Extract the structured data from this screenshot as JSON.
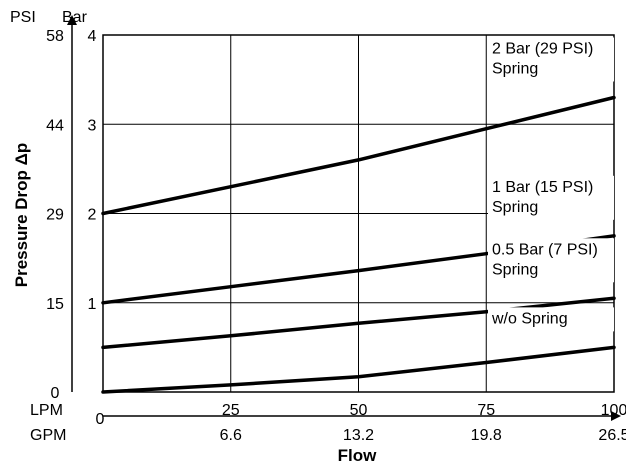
{
  "chart_data": {
    "type": "line",
    "xlabel": "Flow",
    "ylabel": "Pressure Drop Δp",
    "x_axes": [
      {
        "unit": "LPM",
        "zero_label": "0",
        "ticks": [
          "25",
          "50",
          "75",
          "100"
        ],
        "values": [
          25,
          50,
          75,
          100
        ]
      },
      {
        "unit": "GPM",
        "ticks": [
          "6.6",
          "13.2",
          "19.8",
          "26.5"
        ],
        "values": [
          25,
          50,
          75,
          100
        ]
      }
    ],
    "y_axes": [
      {
        "unit": "PSI",
        "ticks": [
          "0",
          "15",
          "29",
          "44",
          "58"
        ],
        "values": [
          0,
          1,
          2,
          3,
          4
        ]
      },
      {
        "unit": "Bar",
        "ticks": [
          "1",
          "2",
          "3",
          "4"
        ],
        "values": [
          1,
          2,
          3,
          4
        ]
      }
    ],
    "xlim": [
      0,
      100
    ],
    "ylim": [
      0,
      4
    ],
    "grid": true,
    "series": [
      {
        "name": "2 Bar (29 PSI) Spring",
        "label_lines": [
          "2 Bar (29 PSI)",
          "Spring"
        ],
        "x": [
          0,
          25,
          50,
          75,
          100
        ],
        "y": [
          2.0,
          2.3,
          2.6,
          2.95,
          3.3
        ]
      },
      {
        "name": "1 Bar (15 PSI) Spring",
        "label_lines": [
          "1 Bar (15 PSI)",
          "Spring"
        ],
        "x": [
          0,
          25,
          50,
          75,
          100
        ],
        "y": [
          1.0,
          1.18,
          1.36,
          1.55,
          1.75
        ]
      },
      {
        "name": "0.5 Bar (7 PSI) Spring",
        "label_lines": [
          "0.5 Bar (7 PSI)",
          "Spring"
        ],
        "x": [
          0,
          25,
          50,
          75,
          100
        ],
        "y": [
          0.5,
          0.63,
          0.77,
          0.9,
          1.05
        ]
      },
      {
        "name": "w/o Spring",
        "label_lines": [
          "w/o Spring"
        ],
        "x": [
          0,
          25,
          50,
          75,
          100
        ],
        "y": [
          0.0,
          0.08,
          0.17,
          0.33,
          0.5
        ]
      }
    ]
  }
}
